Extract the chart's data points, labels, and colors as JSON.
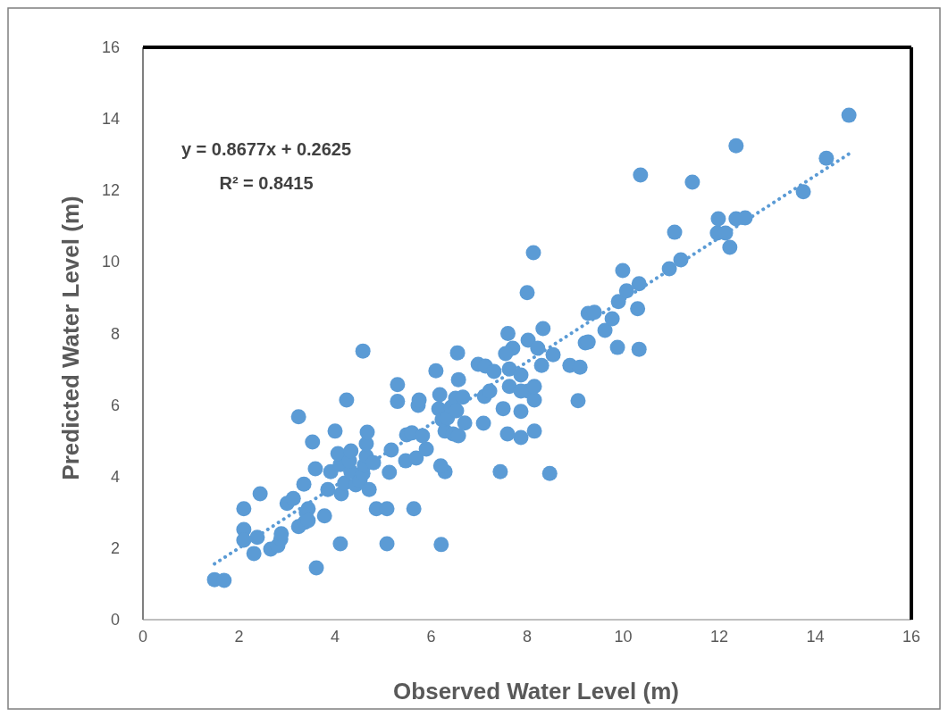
{
  "chart_data": {
    "type": "scatter",
    "xlabel": "Observed Water Level (m)",
    "ylabel": "Predicted Water Level (m)",
    "xlim": [
      0,
      16
    ],
    "ylim": [
      0,
      16
    ],
    "xticks": [
      0,
      2,
      4,
      6,
      8,
      10,
      12,
      14,
      16
    ],
    "yticks": [
      0,
      2,
      4,
      6,
      8,
      10,
      12,
      14,
      16
    ],
    "grid": false,
    "marker": "circle",
    "annotations": [
      "y = 0.8677x + 0.2625",
      "R² = 0.8415"
    ],
    "series": [
      {
        "color": "#5b9bd5",
        "x": [
          1.49,
          1.69,
          3.61,
          2.1,
          2.44,
          2.1,
          2.1,
          2.31,
          2.38,
          2.66,
          2.81,
          2.87,
          2.88,
          3.0,
          3.13,
          3.24,
          3.37,
          3.4,
          3.35,
          3.24,
          3.53,
          3.44,
          3.44,
          3.59,
          3.78,
          3.85,
          3.91,
          4.0,
          4.11,
          4.06,
          4.13,
          4.2,
          4.24,
          4.33,
          4.3,
          4.33,
          4.43,
          4.52,
          4.58,
          4.61,
          4.65,
          4.65,
          4.58,
          4.71,
          4.8,
          4.67,
          4.11,
          5.08,
          6.21,
          4.86,
          5.08,
          5.64,
          5.13,
          5.17,
          5.3,
          5.3,
          5.47,
          5.49,
          5.6,
          5.69,
          5.73,
          5.75,
          5.9,
          5.82,
          6.1,
          6.16,
          6.18,
          6.29,
          6.23,
          6.34,
          6.42,
          6.46,
          6.51,
          6.53,
          6.57,
          6.57,
          6.29,
          6.2,
          6.66,
          6.55,
          6.7,
          6.98,
          7.13,
          7.11,
          7.31,
          7.22,
          7.09,
          7.5,
          7.44,
          7.63,
          7.63,
          7.7,
          7.55,
          7.6,
          7.87,
          8.02,
          8.15,
          7.87,
          7.87,
          8.15,
          8.15,
          7.87,
          7.59,
          8.47,
          8.13,
          8.0,
          8.33,
          8.02,
          9.21,
          8.89,
          9.1,
          8.3,
          9.06,
          8.54,
          8.22,
          9.27,
          9.4,
          9.62,
          9.77,
          9.9,
          9.99,
          10.07,
          10.33,
          10.3,
          9.27,
          9.88,
          10.33,
          10.96,
          11.2,
          11.07,
          11.96,
          11.98,
          12.13,
          12.22,
          12.35,
          12.54,
          10.36,
          11.44,
          12.35,
          13.75,
          14.23,
          14.7
        ],
        "values": [
          1.12,
          1.1,
          1.45,
          3.1,
          3.52,
          2.52,
          2.22,
          1.85,
          2.3,
          1.97,
          2.07,
          2.25,
          2.4,
          3.25,
          3.39,
          2.6,
          2.72,
          3.0,
          3.79,
          5.67,
          4.97,
          3.1,
          2.77,
          4.22,
          2.9,
          3.64,
          4.14,
          5.27,
          4.34,
          4.64,
          3.52,
          3.82,
          6.14,
          4.14,
          4.44,
          4.72,
          3.77,
          3.89,
          4.09,
          4.32,
          4.57,
          4.92,
          7.51,
          3.64,
          4.39,
          5.24,
          2.12,
          2.12,
          2.1,
          3.1,
          3.1,
          3.1,
          4.12,
          4.74,
          6.57,
          6.1,
          4.44,
          5.17,
          5.22,
          4.52,
          5.99,
          6.14,
          4.77,
          5.14,
          6.96,
          5.89,
          6.29,
          5.27,
          5.59,
          5.64,
          5.94,
          5.19,
          6.19,
          5.84,
          5.14,
          6.71,
          4.14,
          4.3,
          6.22,
          7.46,
          5.5,
          7.14,
          7.09,
          6.24,
          6.94,
          6.39,
          5.49,
          5.9,
          4.14,
          7.01,
          6.52,
          7.59,
          7.44,
          8.0,
          6.84,
          6.39,
          6.14,
          6.39,
          5.82,
          6.52,
          5.27,
          5.09,
          5.19,
          4.09,
          10.26,
          9.14,
          8.14,
          7.81,
          7.74,
          7.11,
          7.06,
          7.11,
          6.12,
          7.41,
          7.59,
          8.56,
          8.59,
          8.09,
          8.41,
          8.89,
          9.76,
          9.19,
          9.39,
          8.69,
          7.76,
          7.61,
          7.56,
          9.81,
          10.06,
          10.83,
          10.81,
          11.21,
          10.81,
          10.41,
          11.21,
          11.23,
          12.43,
          12.23,
          13.25,
          11.96,
          12.9,
          14.1
        ]
      },
      {
        "type": "line",
        "color": "#5b9bd5",
        "line_style": "dotted",
        "marker": "none",
        "x": [
          1.49,
          14.7
        ],
        "values": [
          1.56,
          13.02
        ]
      }
    ]
  }
}
